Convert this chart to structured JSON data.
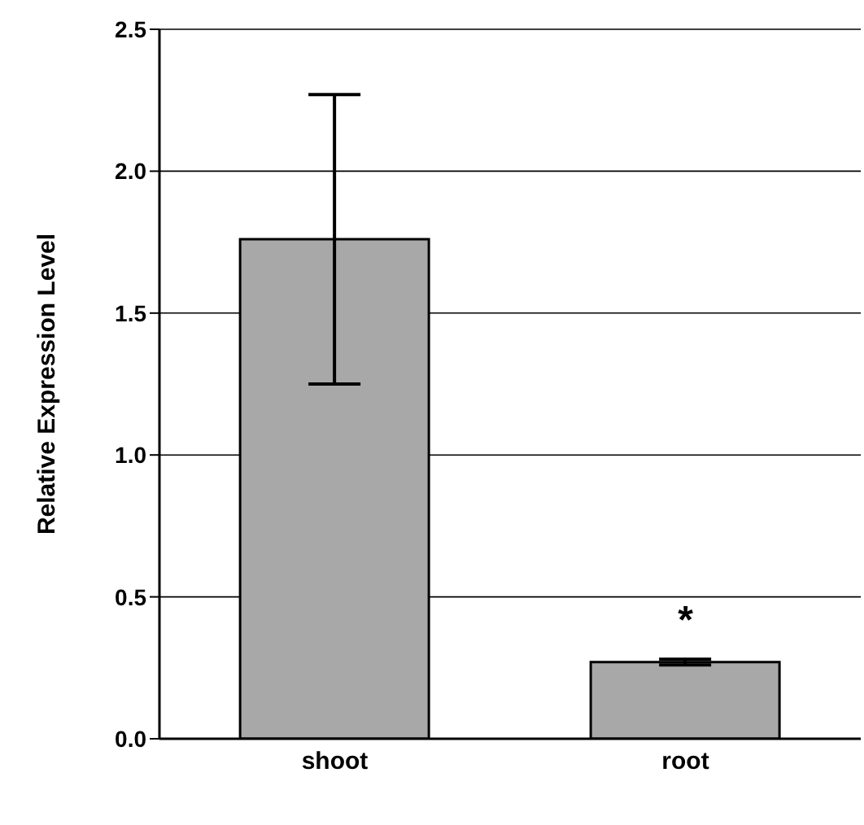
{
  "chart_data": {
    "type": "bar",
    "ylabel": "Relative Expression Level",
    "categories": [
      "shoot",
      "root"
    ],
    "values": [
      1.76,
      0.27
    ],
    "color": "#a8a8a8",
    "errors": [
      0.51,
      0.01
    ],
    "ylim": [
      0,
      2.5
    ],
    "yticks": [
      {
        "value": 0,
        "label": "0.0"
      },
      {
        "value": 0.5,
        "label": "0.5"
      },
      {
        "value": 1,
        "label": "1.0"
      },
      {
        "value": 1.5,
        "label": "1.5"
      },
      {
        "value": 2,
        "label": "2.0"
      },
      {
        "value": 2.5,
        "label": "2.5"
      }
    ],
    "grid": "y",
    "annotations": [
      {
        "text": "*",
        "x": "root",
        "y": 0.27
      }
    ]
  }
}
